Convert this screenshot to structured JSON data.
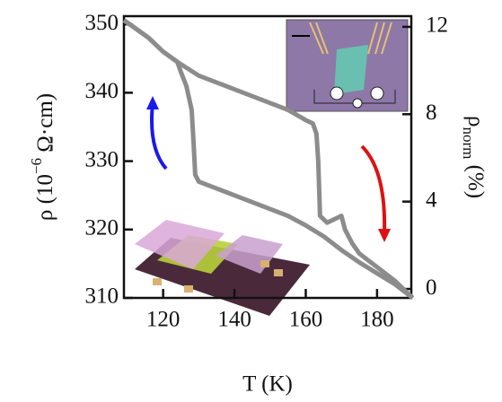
{
  "chart_data": {
    "type": "line",
    "xlabel": "T (K)",
    "ylabel": [
      "ρ (10",
      "−6",
      " Ω·cm)"
    ],
    "y2label": [
      "ρ",
      "norm",
      " (%)"
    ],
    "xlim": [
      109,
      189.6
    ],
    "xticks": [
      120,
      140,
      160,
      180
    ],
    "ylim": [
      310,
      351.2
    ],
    "yticks": [
      310,
      320,
      330,
      340,
      350
    ],
    "y2lim": [
      -0.41,
      12.49
    ],
    "y2ticks": [
      0,
      4,
      8,
      12
    ],
    "series": [
      {
        "color": "#8c8c8c",
        "x": [
          190,
          185,
          180,
          175,
          170,
          165,
          160,
          155,
          150,
          145,
          140,
          135,
          130,
          129,
          128.5,
          128,
          126.5,
          125,
          124,
          120,
          116,
          112,
          109
        ],
        "values": [
          310,
          312,
          313.6,
          315.2,
          317,
          319,
          320.6,
          322,
          323,
          324,
          325,
          326,
          327,
          328,
          333,
          337.5,
          341,
          343,
          344.5,
          346,
          348,
          349.5,
          350.6
        ]
      },
      {
        "color": "#8c8c8c",
        "x": [
          109,
          112,
          116,
          120,
          124,
          130,
          135,
          140,
          145,
          150,
          155,
          160,
          162,
          163,
          163.5,
          164,
          166,
          168,
          170,
          171,
          173,
          175,
          180,
          185,
          190
        ],
        "values": [
          350.6,
          349.5,
          348,
          346,
          344.5,
          342.5,
          341.5,
          340.5,
          339.5,
          338.5,
          337.5,
          336,
          335.5,
          334,
          330,
          322,
          321,
          321.5,
          322,
          320,
          318,
          316.5,
          314.5,
          312.5,
          310
        ]
      }
    ]
  }
}
